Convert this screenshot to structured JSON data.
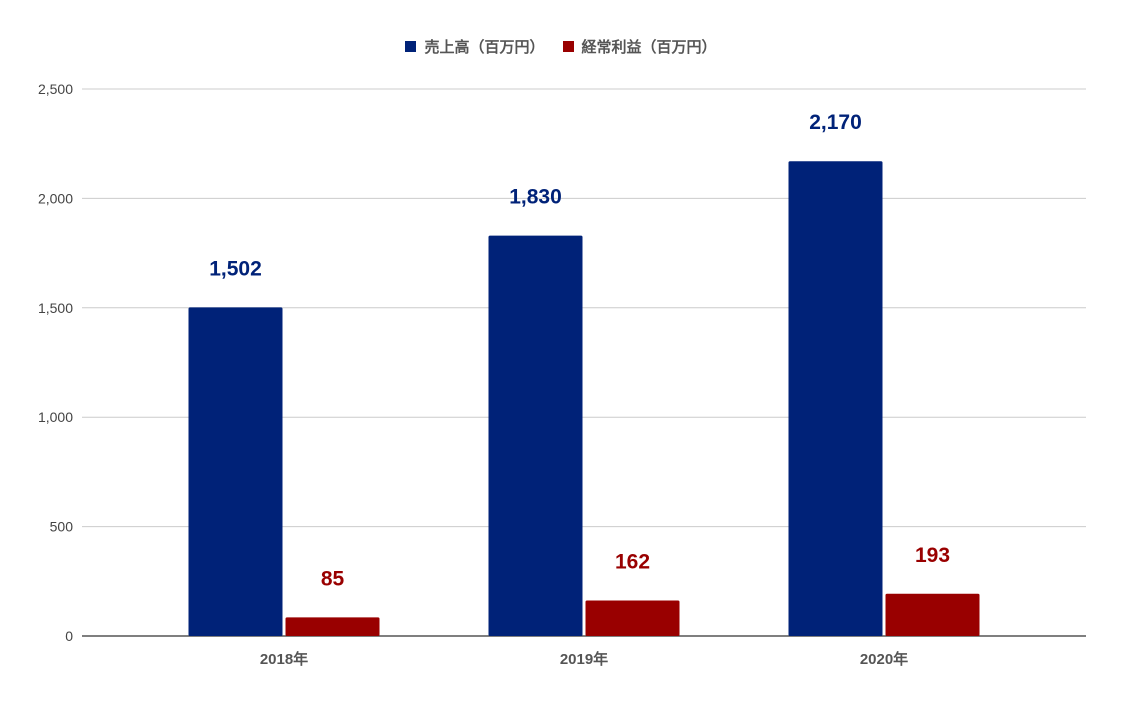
{
  "chart_data": {
    "type": "bar",
    "categories": [
      "2018年",
      "2019年",
      "2020年"
    ],
    "series": [
      {
        "name": "売上高（百万円）",
        "values": [
          1502,
          1830,
          2170
        ],
        "labels": [
          "1,502",
          "1,830",
          "2,170"
        ],
        "color": "#002278"
      },
      {
        "name": "経常利益（百万円）",
        "values": [
          85,
          162,
          193
        ],
        "labels": [
          "85",
          "162",
          "193"
        ],
        "color": "#990000"
      }
    ],
    "yticks": [
      "0",
      "500",
      "1,000",
      "1,500",
      "2,000",
      "2,500"
    ],
    "ytick_values": [
      0,
      500,
      1000,
      1500,
      2000,
      2500
    ],
    "ylim": [
      0,
      2500
    ],
    "grid": true,
    "legend_position": "top-center"
  }
}
